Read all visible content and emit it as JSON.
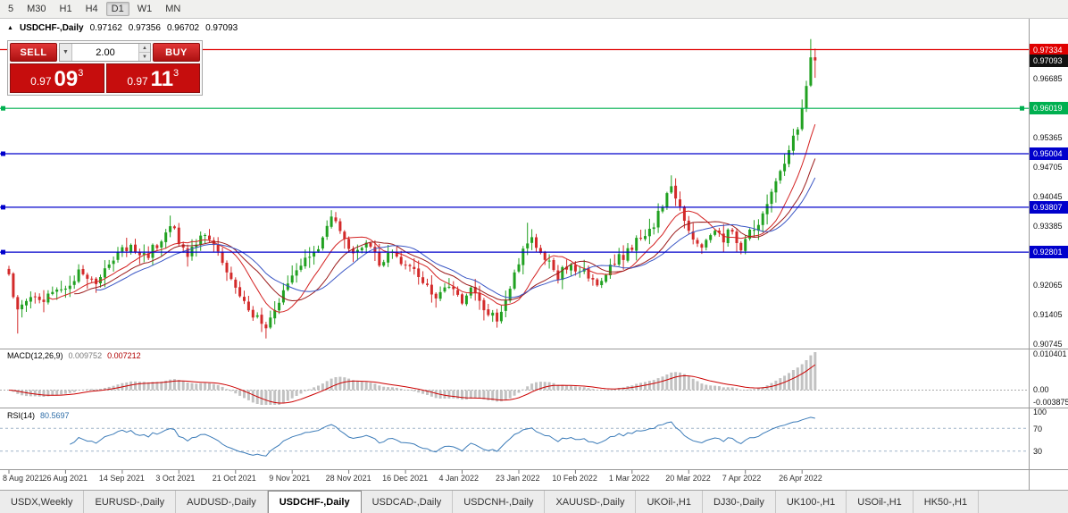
{
  "toolbar": {
    "items": [
      "5",
      "M30",
      "H1",
      "H4",
      "D1",
      "W1",
      "MN"
    ],
    "active": "D1"
  },
  "chart_header": {
    "symbol": "USDCHF-,Daily",
    "open": "0.97162",
    "high": "0.97356",
    "low": "0.96702",
    "close": "0.97093"
  },
  "trade_panel": {
    "sell_label": "SELL",
    "buy_label": "BUY",
    "volume": "2.00",
    "bid": {
      "big_figure": "0.97",
      "pips": "09",
      "pipette": "3"
    },
    "ask": {
      "big_figure": "0.97",
      "pips": "11",
      "pipette": "3"
    }
  },
  "price_axis": {
    "ticks": [
      {
        "label": "0.96685",
        "value": 0.96685
      },
      {
        "label": "0.95365",
        "value": 0.95365
      },
      {
        "label": "0.94705",
        "value": 0.94705
      },
      {
        "label": "0.94045",
        "value": 0.94045
      },
      {
        "label": "0.93385",
        "value": 0.93385
      },
      {
        "label": "0.92065",
        "value": 0.92065
      },
      {
        "label": "0.91405",
        "value": 0.91405
      },
      {
        "label": "0.90745",
        "value": 0.90745
      }
    ]
  },
  "macd": {
    "title": "MACD(12,26,9)",
    "value_main": "0.009752",
    "value_signal": "0.007212",
    "axis_max": "0.010401",
    "axis_zero": "0.00",
    "axis_min": "-0.003875"
  },
  "rsi": {
    "title": "RSI(14)",
    "value": "80.5697",
    "levels": [
      {
        "label": "100",
        "value": 100
      },
      {
        "label": "70",
        "value": 70
      },
      {
        "label": "30",
        "value": 30
      }
    ]
  },
  "time_axis": {
    "labels": [
      "8 Aug 2021",
      "26 Aug 2021",
      "14 Sep 2021",
      "3 Oct 2021",
      "21 Oct 2021",
      "9 Nov 2021",
      "28 Nov 2021",
      "16 Dec 2021",
      "4 Jan 2022",
      "23 Jan 2022",
      "10 Feb 2022",
      "1 Mar 2022",
      "20 Mar 2022",
      "7 Apr 2022",
      "26 Apr 2022"
    ]
  },
  "tabs": [
    {
      "label": "USDX,Weekly",
      "active": false
    },
    {
      "label": "EURUSD-,Daily",
      "active": false
    },
    {
      "label": "AUDUSD-,Daily",
      "active": false
    },
    {
      "label": "USDCHF-,Daily",
      "active": true
    },
    {
      "label": "USDCAD-,Daily",
      "active": false
    },
    {
      "label": "USDCNH-,Daily",
      "active": false
    },
    {
      "label": "XAUUSD-,Daily",
      "active": false
    },
    {
      "label": "UKOil-,H1",
      "active": false
    },
    {
      "label": "DJ30-,Daily",
      "active": false
    },
    {
      "label": "UK100-,H1",
      "active": false
    },
    {
      "label": "USOil-,H1",
      "active": false
    },
    {
      "label": "HK50-,H1",
      "active": false
    }
  ],
  "chart_data": {
    "type": "candlestick",
    "symbol": "USDCHF",
    "timeframe": "Daily",
    "bars": 186,
    "last_bar": {
      "open": 0.97162,
      "high": 0.97356,
      "low": 0.96702,
      "close": 0.97093
    },
    "close_keyframes": [
      [
        0,
        0.9225
      ],
      [
        2,
        0.915
      ],
      [
        5,
        0.9178
      ],
      [
        8,
        0.9165
      ],
      [
        11,
        0.9202
      ],
      [
        13,
        0.9188
      ],
      [
        16,
        0.9232
      ],
      [
        20,
        0.9208
      ],
      [
        24,
        0.9272
      ],
      [
        28,
        0.93
      ],
      [
        31,
        0.9268
      ],
      [
        34,
        0.9295
      ],
      [
        37,
        0.9338
      ],
      [
        39,
        0.9308
      ],
      [
        41,
        0.9272
      ],
      [
        44,
        0.9325
      ],
      [
        47,
        0.9292
      ],
      [
        50,
        0.9245
      ],
      [
        53,
        0.9185
      ],
      [
        56,
        0.9142
      ],
      [
        59,
        0.9108
      ],
      [
        62,
        0.9165
      ],
      [
        65,
        0.9225
      ],
      [
        68,
        0.9262
      ],
      [
        71,
        0.9295
      ],
      [
        74,
        0.9352
      ],
      [
        76,
        0.9338
      ],
      [
        79,
        0.9272
      ],
      [
        82,
        0.9302
      ],
      [
        85,
        0.9258
      ],
      [
        88,
        0.9282
      ],
      [
        92,
        0.9242
      ],
      [
        95,
        0.9212
      ],
      [
        98,
        0.9178
      ],
      [
        101,
        0.9202
      ],
      [
        104,
        0.9168
      ],
      [
        106,
        0.9192
      ],
      [
        109,
        0.9152
      ],
      [
        112,
        0.9132
      ],
      [
        115,
        0.9202
      ],
      [
        118,
        0.9282
      ],
      [
        120,
        0.9318
      ],
      [
        123,
        0.9262
      ],
      [
        126,
        0.9228
      ],
      [
        129,
        0.9256
      ],
      [
        132,
        0.9232
      ],
      [
        135,
        0.9212
      ],
      [
        138,
        0.9252
      ],
      [
        141,
        0.9272
      ],
      [
        144,
        0.9302
      ],
      [
        147,
        0.9322
      ],
      [
        150,
        0.9382
      ],
      [
        152,
        0.9428
      ],
      [
        154,
        0.9388
      ],
      [
        156,
        0.933
      ],
      [
        159,
        0.9292
      ],
      [
        162,
        0.933
      ],
      [
        164,
        0.9312
      ],
      [
        166,
        0.9332
      ],
      [
        168,
        0.9282
      ],
      [
        170,
        0.9322
      ],
      [
        172,
        0.9342
      ],
      [
        174,
        0.9385
      ],
      [
        176,
        0.9438
      ],
      [
        178,
        0.9478
      ],
      [
        180,
        0.9538
      ],
      [
        181,
        0.9558
      ],
      [
        182,
        0.9602
      ],
      [
        183,
        0.9652
      ],
      [
        184,
        0.9716
      ],
      [
        185,
        0.97093
      ]
    ],
    "close_overrides": {
      "183": 0.9652,
      "184": 0.9716,
      "185": 0.97093
    },
    "wick_overrides": {
      "2": {
        "low": 0.9098
      },
      "37": {
        "high": 0.9362
      },
      "59": {
        "low": 0.9087
      },
      "75": {
        "high": 0.937
      },
      "119": {
        "high": 0.9346
      },
      "152": {
        "high": 0.9452
      },
      "184": {
        "high": 0.9757
      }
    },
    "levels": [
      {
        "label": "0.97334",
        "value": 0.97334,
        "color": "#e00000",
        "type": "horizontal-line",
        "markers": 0
      },
      {
        "label": "0.97093",
        "value": 0.97093,
        "color": "#111111",
        "type": "current-price",
        "markers": 0
      },
      {
        "label": "0.96019",
        "value": 0.96019,
        "color": "#00b050",
        "type": "horizontal-line",
        "markers": 2
      },
      {
        "label": "0.95004",
        "value": 0.95004,
        "color": "#0000cc",
        "type": "horizontal-line",
        "markers": 1
      },
      {
        "label": "0.93807",
        "value": 0.93807,
        "color": "#0000cc",
        "type": "horizontal-line",
        "markers": 1
      },
      {
        "label": "0.92801",
        "value": 0.92801,
        "color": "#0000cc",
        "type": "horizontal-line",
        "markers": 1
      }
    ],
    "moving_averages": [
      {
        "period": 10,
        "color": "#d42222"
      },
      {
        "period": 16,
        "color": "#9b1a1a"
      },
      {
        "period": 21,
        "color": "#3a56c5"
      }
    ],
    "indicators": [
      {
        "name": "MACD",
        "params": [
          12,
          26,
          9
        ],
        "values": [
          0.009752,
          0.007212
        ],
        "axis": [
          0.010401,
          0.0,
          -0.003875
        ]
      },
      {
        "name": "RSI",
        "params": [
          14
        ],
        "value": 80.5697,
        "levels": [
          70,
          30
        ]
      }
    ],
    "candle_up_color": "#21a121",
    "candle_down_color": "#d32a2a",
    "x_labels": [
      "8 Aug 2021",
      "26 Aug 2021",
      "14 Sep 2021",
      "3 Oct 2021",
      "21 Oct 2021",
      "9 Nov 2021",
      "28 Nov 2021",
      "16 Dec 2021",
      "4 Jan 2022",
      "23 Jan 2022",
      "10 Feb 2022",
      "1 Mar 2022",
      "20 Mar 2022",
      "7 Apr 2022",
      "26 Apr 2022"
    ]
  }
}
